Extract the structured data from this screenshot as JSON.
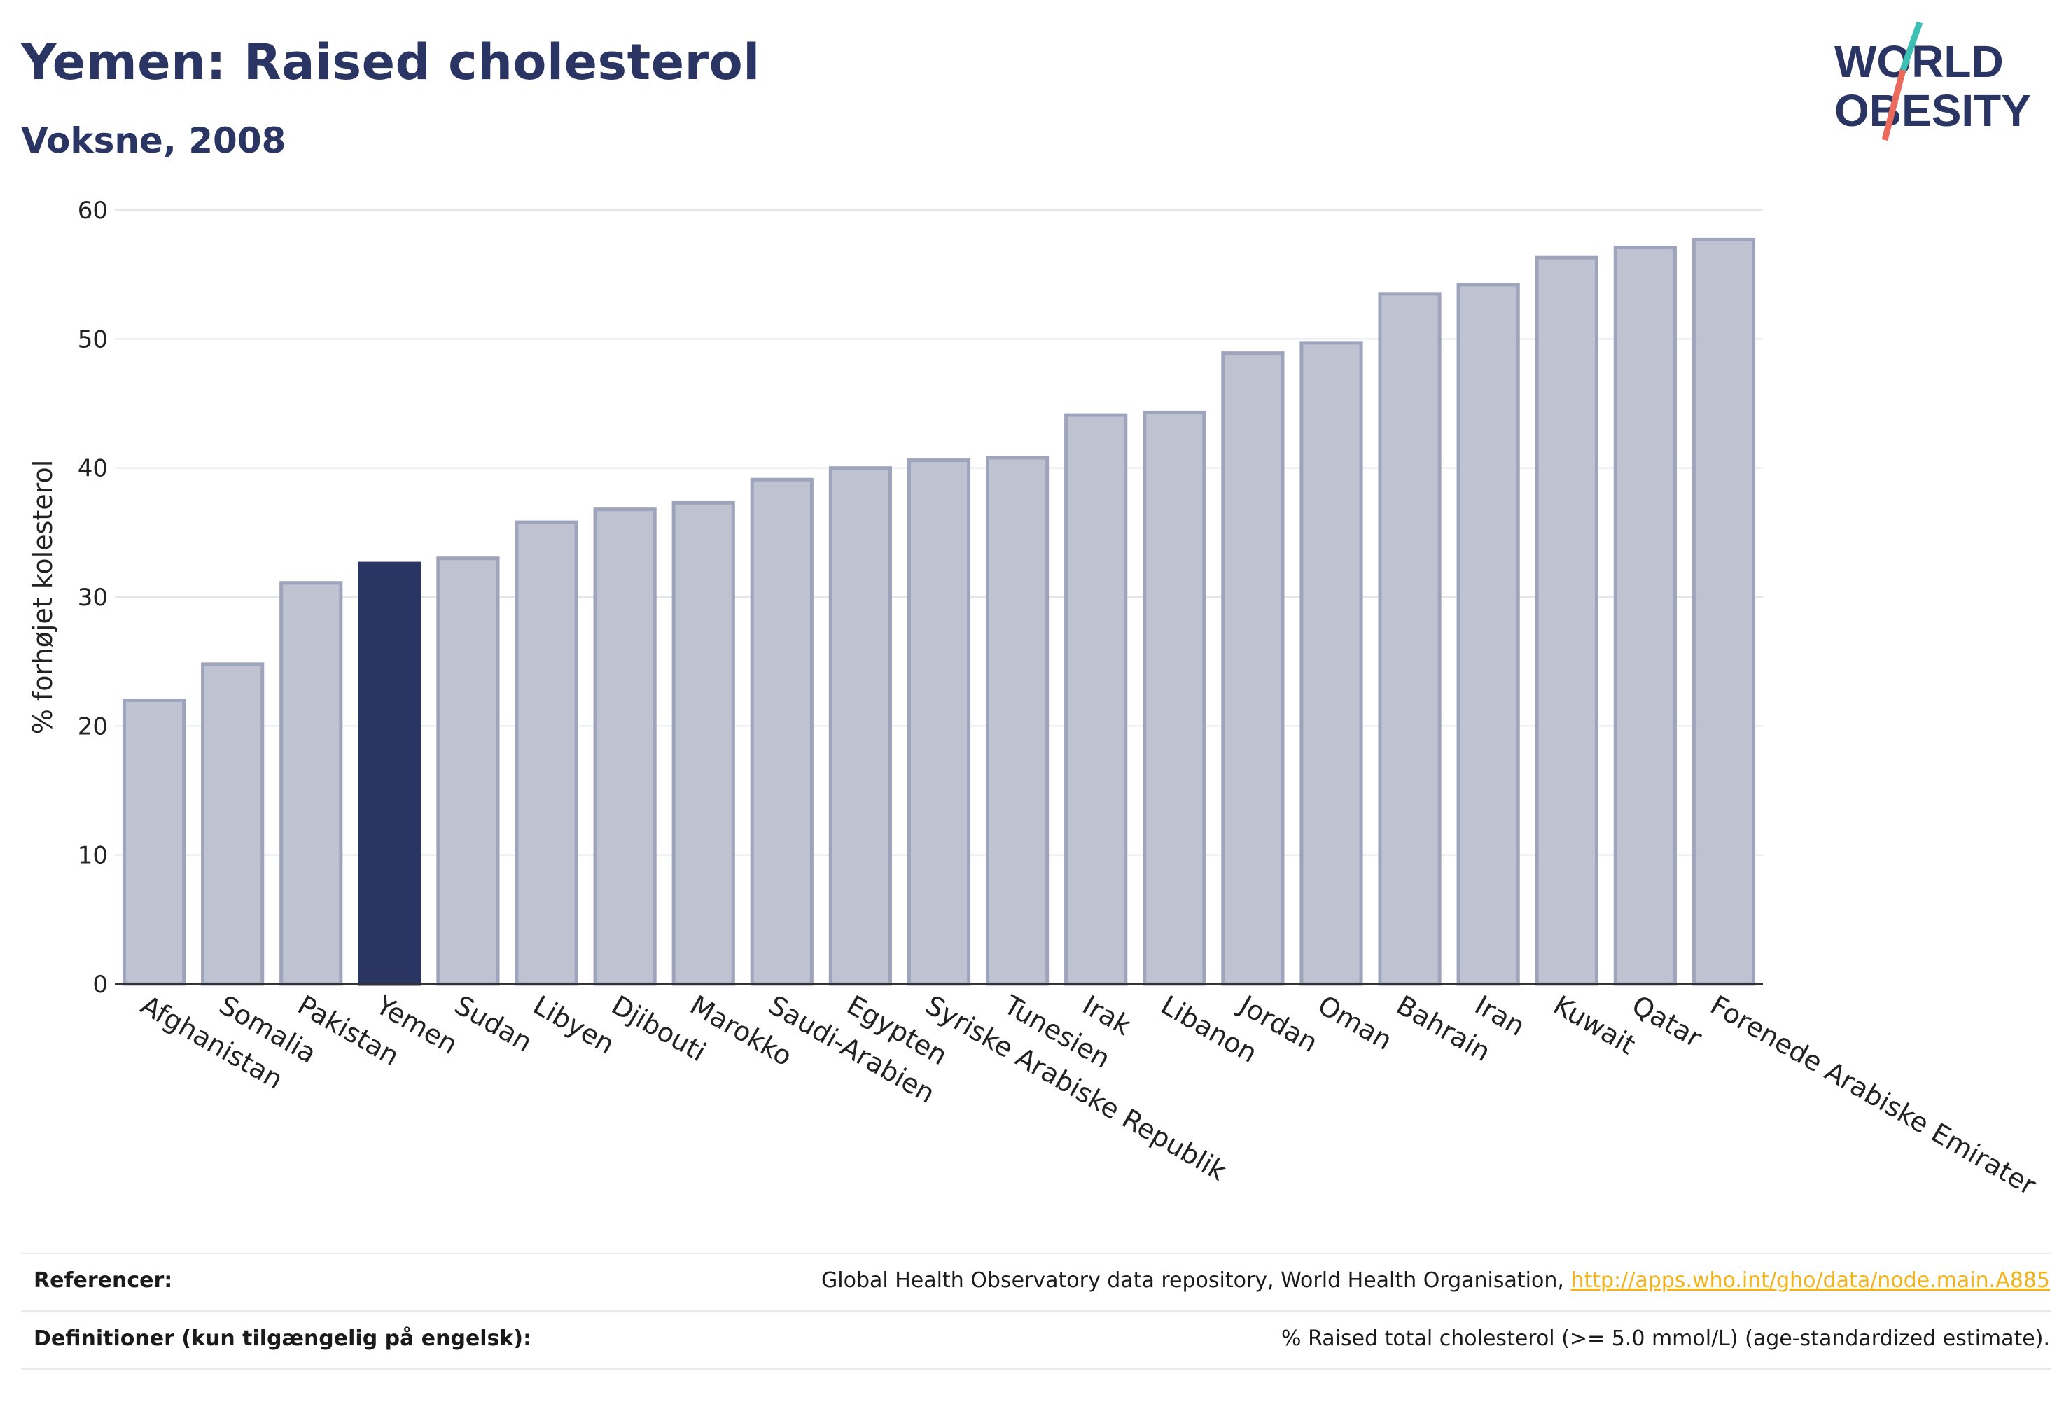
{
  "title": "Yemen: Raised cholesterol",
  "subtitle": "Voksne, 2008",
  "logo": {
    "line1": "WORLD",
    "line2": "OBESITY"
  },
  "colors": {
    "highlight": "#2b3563",
    "bar": "#bfc3d1",
    "bar_stroke": "#9ea4bc",
    "accent_teal": "#3dbfb4",
    "accent_coral": "#ea6a5e",
    "link": "#f3b21a"
  },
  "chart_data": {
    "type": "bar",
    "ylabel": "% forhøjet kolesterol",
    "ylim": [
      0,
      60
    ],
    "yticks": [
      0,
      10,
      20,
      30,
      40,
      50,
      60
    ],
    "grid": true,
    "highlight_category": "Yemen",
    "categories": [
      "Afghanistan",
      "Somalia",
      "Pakistan",
      "Yemen",
      "Sudan",
      "Libyen",
      "Djibouti",
      "Marokko",
      "Saudi-Arabien",
      "Egypten",
      "Syriske Arabiske Republik",
      "Tunesien",
      "Irak",
      "Libanon",
      "Jordan",
      "Oman",
      "Bahrain",
      "Iran",
      "Kuwait",
      "Qatar",
      "Forenede Arabiske Emirater"
    ],
    "values": [
      22.0,
      24.8,
      31.1,
      32.6,
      33.0,
      35.8,
      36.8,
      37.3,
      39.1,
      40.0,
      40.6,
      40.8,
      44.1,
      44.3,
      48.9,
      49.7,
      53.5,
      54.2,
      56.3,
      57.1,
      57.7
    ]
  },
  "footer": {
    "references_label": "Referencer:",
    "references_text": "Global Health Observatory data repository, World Health Organisation, ",
    "references_link": "http://apps.who.int/gho/data/node.main.A885",
    "definitions_label": "Definitioner (kun tilgængelig på engelsk):",
    "definitions_text": "% Raised total cholesterol (>= 5.0 mmol/L) (age-standardized estimate)."
  }
}
